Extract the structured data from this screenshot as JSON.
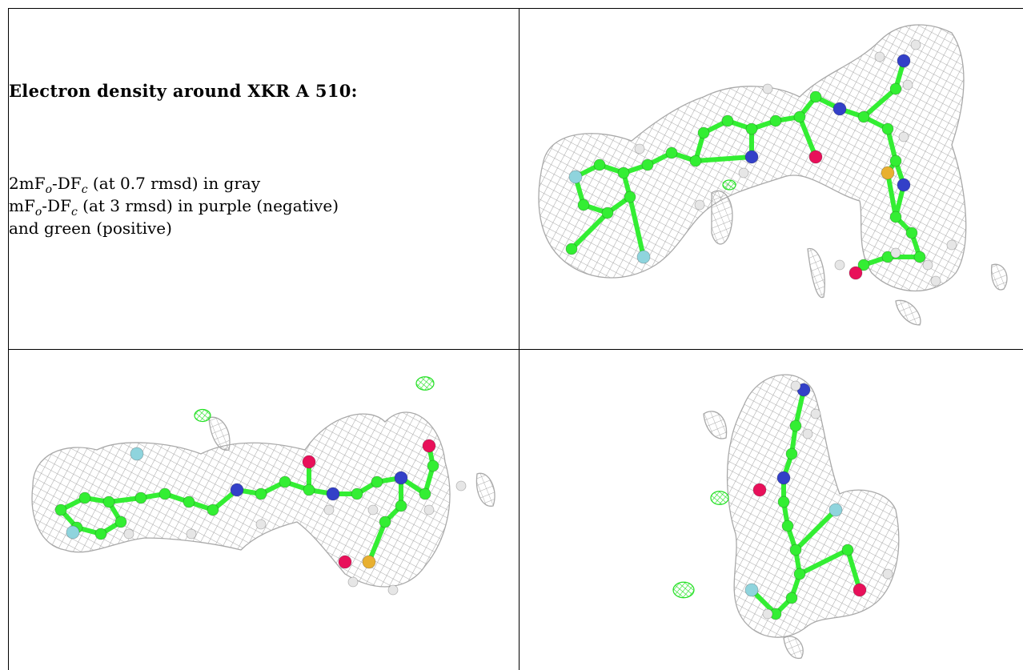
{
  "caption": {
    "title": "Electron density around XKR A 510:",
    "line1": {
      "prefix": "2mF",
      "sub1": "o",
      "mid": "-DF",
      "sub2": "c",
      "suffix": " (at 0.7 rmsd) in gray"
    },
    "line2": {
      "prefix": "mF",
      "sub1": "o",
      "mid": "-DF",
      "sub2": "c",
      "suffix": " (at 3 rmsd) in purple (negative)"
    },
    "line3": "and green (positive)"
  },
  "views": [
    {
      "name": "view-top-right"
    },
    {
      "name": "view-bottom-left"
    },
    {
      "name": "view-bottom-right"
    }
  ],
  "colors": {
    "mesh_2fofc": "#a9a9a9",
    "mesh_positive": "#22e022",
    "carbon": "#33ee33",
    "nitrogen": "#3340c8",
    "oxygen": "#e8105a",
    "fluorine": "#8fd4dd",
    "sulfur": "#e8b030",
    "hydrogen": "#e6e6e6"
  }
}
